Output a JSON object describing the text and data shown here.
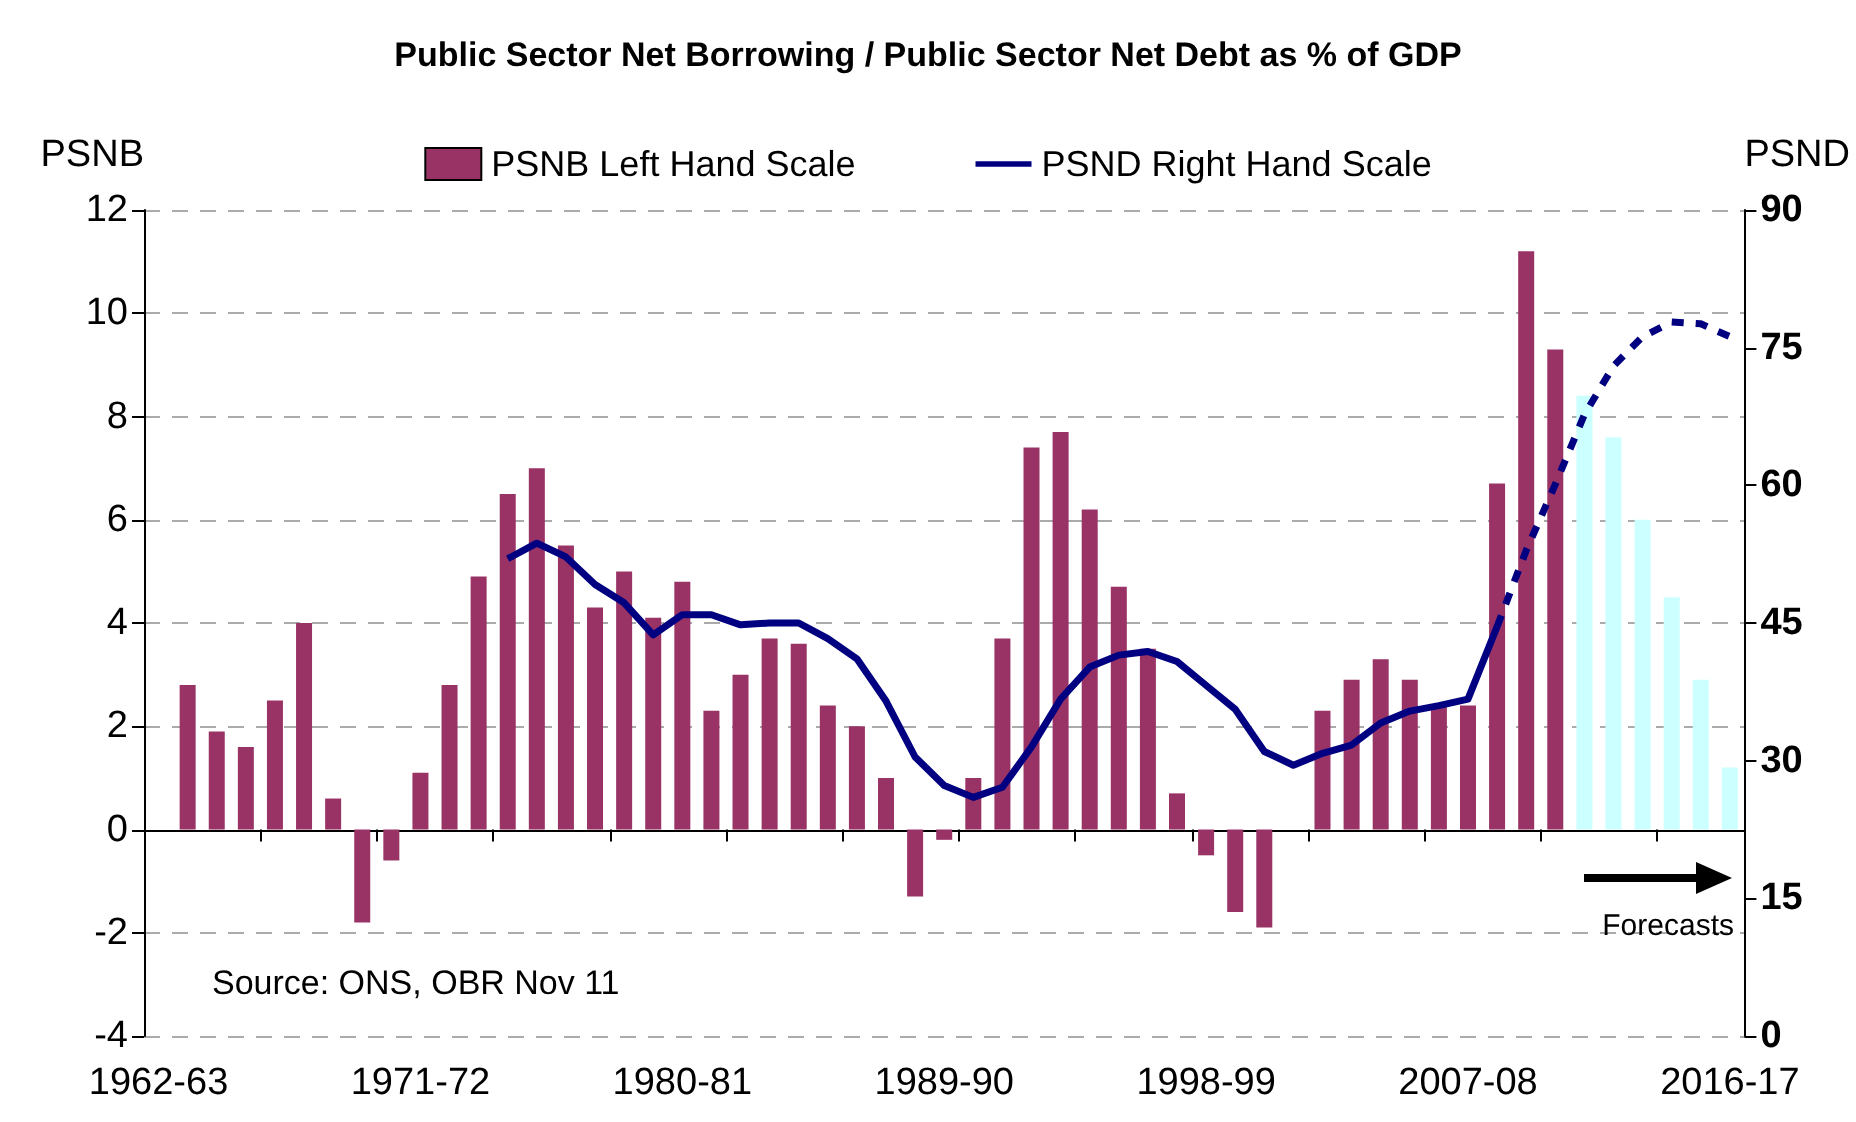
{
  "chart_data": {
    "type": "bar",
    "title": "Public Sector Net Borrowing / Public Sector Net Debt as % of GDP",
    "ylabel": "PSNB",
    "y2label": "PSND",
    "categories": [
      "1962-63",
      null,
      null,
      null,
      null,
      null,
      null,
      null,
      null,
      "1971-72",
      null,
      null,
      null,
      null,
      null,
      null,
      null,
      null,
      "1980-81",
      null,
      null,
      null,
      null,
      null,
      null,
      null,
      null,
      "1989-90",
      null,
      null,
      null,
      null,
      null,
      null,
      null,
      null,
      "1998-99",
      null,
      null,
      null,
      null,
      null,
      null,
      null,
      null,
      "2007-08",
      null,
      null,
      null,
      null,
      null,
      null,
      null,
      null,
      "2016-17"
    ],
    "series": [
      {
        "name": "PSNB Left Hand Scale",
        "color": "#993366",
        "colors": [
          "#993366",
          "#993366",
          "#993366",
          "#993366",
          "#993366",
          "#993366",
          "#993366",
          "#993366",
          "#993366",
          "#993366",
          "#993366",
          "#993366",
          "#993366",
          "#993366",
          "#993366",
          "#993366",
          "#993366",
          "#993366",
          "#993366",
          "#993366",
          "#993366",
          "#993366",
          "#993366",
          "#993366",
          "#993366",
          "#993366",
          "#993366",
          "#993366",
          "#993366",
          "#993366",
          "#993366",
          "#993366",
          "#993366",
          "#993366",
          "#993366",
          "#993366",
          "#993366",
          "#993366",
          "#993366",
          "#993366",
          "#993366",
          "#993366",
          "#993366",
          "#993366",
          "#993366",
          "#993366",
          "#993366",
          "#993366",
          "#993366",
          "#ccffff",
          "#ccffff",
          "#ccffff",
          "#ccffff",
          "#ccffff",
          "#ccffff"
        ],
        "values": [
          null,
          2.8,
          1.9,
          1.6,
          2.5,
          4.0,
          0.6,
          -1.8,
          -0.6,
          1.1,
          2.8,
          4.9,
          6.5,
          7.0,
          5.5,
          4.3,
          5.0,
          4.1,
          4.8,
          2.3,
          3.0,
          3.7,
          3.6,
          2.4,
          2.0,
          1.0,
          -1.3,
          -0.2,
          1.0,
          3.7,
          7.4,
          7.7,
          6.2,
          4.7,
          3.5,
          0.7,
          -0.5,
          -1.6,
          -1.9,
          null,
          2.3,
          2.9,
          3.3,
          2.9,
          2.4,
          2.4,
          6.7,
          11.2,
          9.3,
          8.4,
          7.6,
          6.0,
          4.5,
          2.9,
          1.2
        ]
      },
      {
        "name": "PSND Right Hand Scale",
        "type": "line",
        "axis": "y2",
        "color": "#000080",
        "line_style": "solid",
        "marker": "none",
        "values": [
          null,
          null,
          null,
          null,
          null,
          null,
          null,
          null,
          null,
          null,
          null,
          null,
          52,
          53.7,
          52.2,
          49.2,
          47.2,
          43.7,
          45.9,
          45.9,
          44.8,
          45,
          45,
          43.3,
          41.1,
          36.5,
          30.4,
          27.3,
          26,
          27.1,
          31.5,
          36.7,
          40.2,
          41.5,
          41.9,
          40.8,
          38.2,
          35.6,
          31,
          29.5,
          30.8,
          31.7,
          34.1,
          35.4,
          36,
          36.7,
          44.6,
          null,
          null,
          null,
          null,
          null,
          null,
          null,
          null
        ]
      },
      {
        "type": "line",
        "axis": "y2",
        "color": "#000080",
        "line_style": "dashed",
        "marker": "none",
        "values": [
          null,
          null,
          null,
          null,
          null,
          null,
          null,
          null,
          null,
          null,
          null,
          null,
          null,
          null,
          null,
          null,
          null,
          null,
          null,
          null,
          null,
          null,
          null,
          null,
          null,
          null,
          null,
          null,
          null,
          null,
          null,
          null,
          null,
          null,
          null,
          null,
          null,
          null,
          null,
          null,
          null,
          null,
          null,
          null,
          null,
          null,
          44.6,
          52.9,
          60.1,
          67.7,
          73,
          76.2,
          77.8,
          77.6,
          76.2
        ]
      }
    ],
    "ylim": [
      -4,
      12
    ],
    "yticks": [
      -4,
      -2,
      0,
      2,
      4,
      6,
      8,
      10,
      12
    ],
    "y2lim": [
      0,
      90
    ],
    "y2ticks": [
      0,
      15,
      30,
      45,
      60,
      75,
      90
    ],
    "grid": "y",
    "legend": "top",
    "annotations": [
      "Source: ONS, OBR Nov 11",
      "Forecasts"
    ]
  }
}
